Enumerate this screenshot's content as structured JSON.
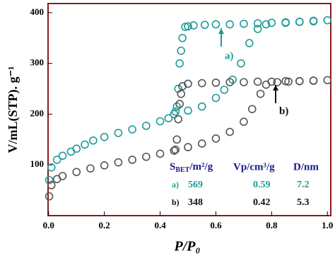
{
  "chart_data": {
    "type": "scatter",
    "x_label": "P/P₀",
    "y_label": "V/mL(STP). g⁻¹",
    "xlim": [
      -0.002,
      1.012
    ],
    "ylim": [
      0,
      418
    ],
    "xticks": [
      {
        "value": 0,
        "label": "0.0"
      },
      {
        "value": 0.2,
        "label": "0.2"
      },
      {
        "value": 0.4,
        "label": "0.4"
      },
      {
        "value": 0.6,
        "label": "0.6"
      },
      {
        "value": 0.8,
        "label": "0.8"
      },
      {
        "value": 1,
        "label": "1.0"
      }
    ],
    "yticks": [
      100,
      200,
      300,
      400
    ],
    "series": [
      {
        "color": "#1f9a98",
        "x": [
          0.002,
          0.01,
          0.03,
          0.05,
          0.08,
          0.1,
          0.13,
          0.16,
          0.2,
          0.25,
          0.3,
          0.35,
          0.4,
          0.43,
          0.45,
          0.5,
          0.55,
          0.6,
          0.63,
          0.66,
          0.69,
          0.72,
          0.75,
          0.78,
          0.85,
          0.9,
          0.95,
          1.0
        ],
        "values": [
          70,
          95,
          110,
          118,
          126,
          132,
          140,
          148,
          155,
          163,
          170,
          177,
          186,
          192,
          200,
          207,
          215,
          232,
          248,
          268,
          300,
          340,
          368,
          377,
          380,
          382,
          383,
          385
        ]
      },
      {
        "color": "#1f9a98",
        "x": [
          0.95,
          0.9,
          0.85,
          0.8,
          0.75,
          0.7,
          0.65,
          0.6,
          0.56,
          0.52,
          0.5,
          0.49,
          0.48,
          0.475,
          0.47,
          0.465,
          0.46,
          0.455
        ],
        "values": [
          384,
          382,
          381,
          380,
          379,
          378,
          377,
          377,
          376,
          375,
          373,
          372,
          350,
          325,
          300,
          250,
          215,
          205
        ]
      },
      {
        "color": "#555555",
        "x": [
          0.002,
          0.01,
          0.03,
          0.05,
          0.1,
          0.15,
          0.2,
          0.25,
          0.3,
          0.35,
          0.4,
          0.45,
          0.5,
          0.55,
          0.6,
          0.65,
          0.7,
          0.73,
          0.76,
          0.78,
          0.82,
          0.86,
          0.9,
          0.95,
          1.0
        ],
        "values": [
          38,
          60,
          72,
          78,
          86,
          93,
          99,
          105,
          110,
          116,
          122,
          128,
          135,
          142,
          152,
          165,
          185,
          210,
          240,
          258,
          263,
          264,
          265,
          266,
          267
        ]
      },
      {
        "color": "#555555",
        "x": [
          0.95,
          0.9,
          0.85,
          0.8,
          0.75,
          0.7,
          0.65,
          0.6,
          0.55,
          0.5,
          0.48,
          0.475,
          0.47,
          0.465,
          0.46,
          0.455
        ],
        "values": [
          266,
          265,
          265,
          264,
          264,
          263,
          263,
          262,
          261,
          260,
          255,
          240,
          220,
          190,
          150,
          130
        ]
      }
    ],
    "annotations": [
      {
        "text": "a)",
        "color": "#1f9a98"
      },
      {
        "text": "b)",
        "color": "#111111"
      }
    ],
    "table": {
      "header": [
        [
          "S",
          "BET",
          "/m²/g"
        ],
        "Vp/cm³/g",
        "D/nm"
      ],
      "header_color": "#1a1a8c",
      "rows": [
        {
          "color": "#1f9a98",
          "cells": [
            "a)",
            "569",
            "0.59",
            "7.2"
          ]
        },
        {
          "color": "#111111",
          "cells": [
            "b)",
            "348",
            "0.42",
            "5.3"
          ]
        }
      ]
    }
  }
}
